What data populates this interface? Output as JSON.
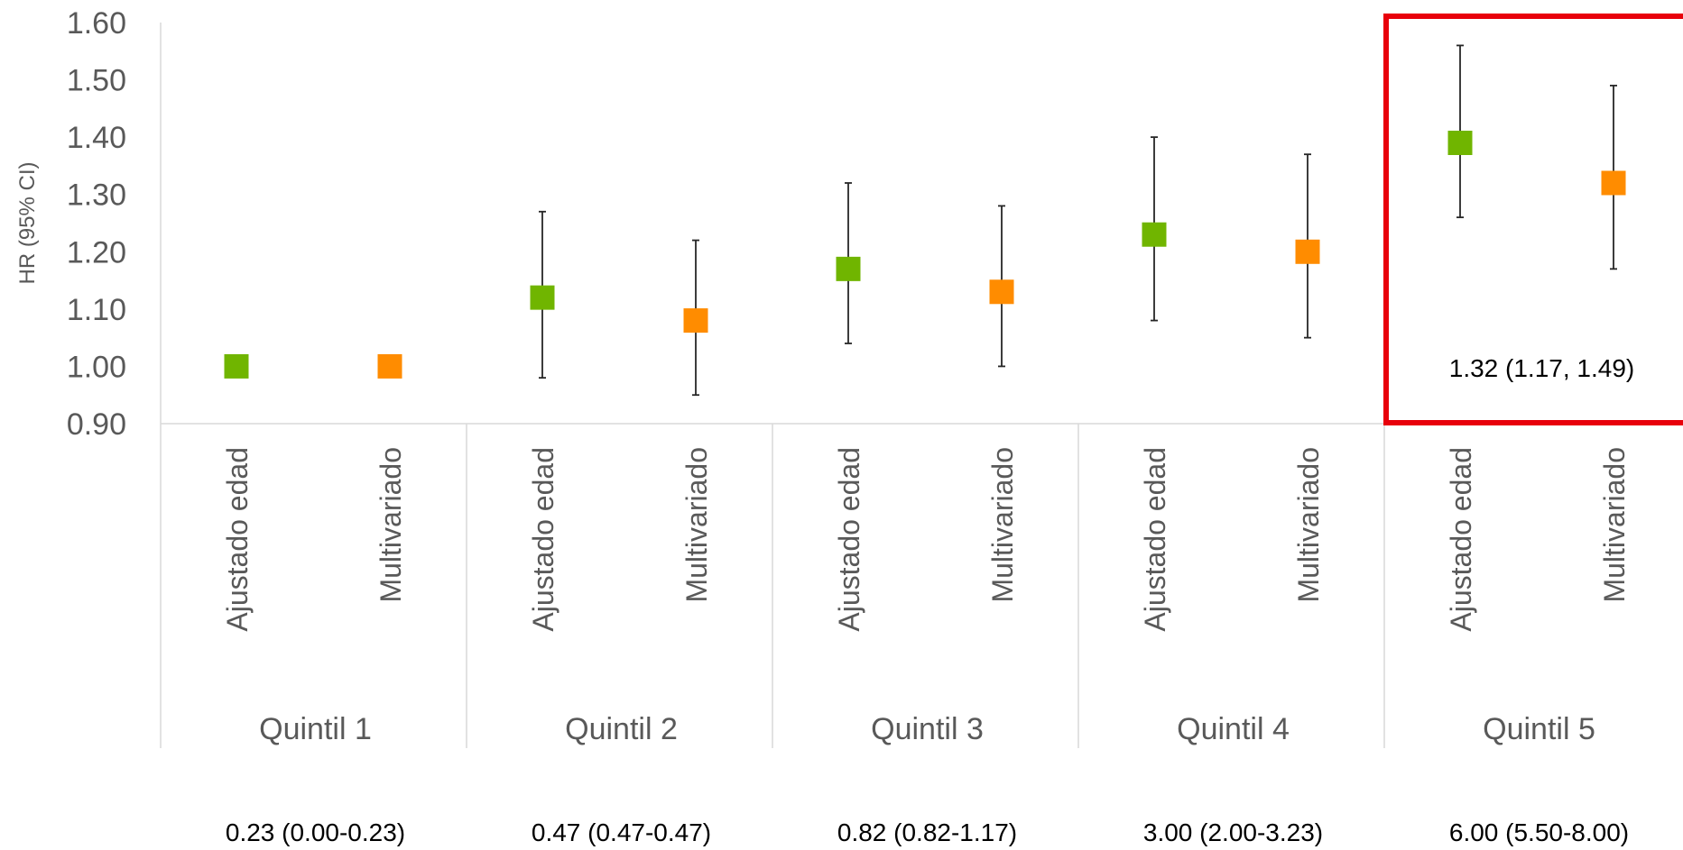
{
  "chart_data": {
    "type": "scatter",
    "ylabel": "HR (95% CI)",
    "ylim": [
      0.9,
      1.6
    ],
    "yticks": [
      "0.90",
      "1.00",
      "1.10",
      "1.20",
      "1.30",
      "1.40",
      "1.50",
      "1.60"
    ],
    "groups": [
      "Quintil 1",
      "Quintil 2",
      "Quintil 3",
      "Quintil 4",
      "Quintil 5"
    ],
    "group_footnotes": [
      "0.23 (0.00-0.23)",
      "0.47 (0.47-0.47)",
      "0.82 (0.82-1.17)",
      "3.00 (2.00-3.23)",
      "6.00 (5.50-8.00)"
    ],
    "series": [
      {
        "label": "Ajustado edad",
        "color": "#70b500",
        "values": [
          1.0,
          1.12,
          1.17,
          1.23,
          1.39
        ],
        "lower": [
          null,
          0.98,
          1.04,
          1.08,
          1.26
        ],
        "upper": [
          null,
          1.27,
          1.32,
          1.4,
          1.56
        ]
      },
      {
        "label": "Multivariado",
        "color": "#ff8c00",
        "values": [
          1.0,
          1.08,
          1.13,
          1.2,
          1.32
        ],
        "lower": [
          null,
          0.95,
          1.0,
          1.05,
          1.17
        ],
        "upper": [
          null,
          1.22,
          1.28,
          1.37,
          1.49
        ]
      }
    ],
    "highlight": {
      "group_index": 4,
      "annotation": "1.32 (1.17, 1.49)",
      "color": "#e8000b"
    },
    "grid": false
  }
}
